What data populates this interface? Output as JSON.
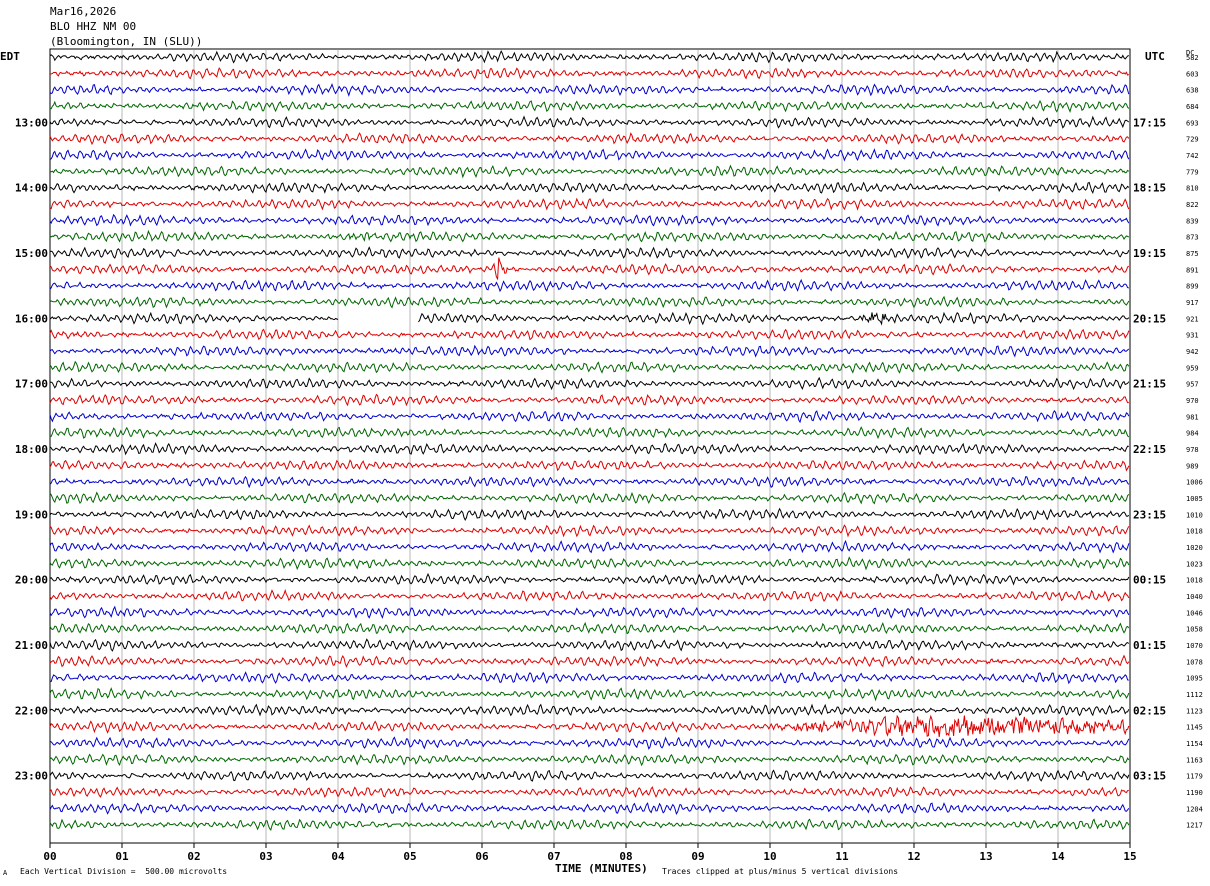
{
  "header": {
    "date": "Mar16,2026",
    "station": "BLO HHZ NM 00",
    "location": "(Bloomington, IN (SLU))"
  },
  "left_axis_title": "EDT",
  "right_axis_title": "UTC",
  "dc_header": "DC",
  "footer": {
    "scale_note": "Each Vertical Division =  500.00 microvolts",
    "clip_note": "Traces clipped at plus/minus 5 vertical divisions",
    "corner_mark": "A"
  },
  "colors": {
    "cycle": [
      "#000000",
      "#dd0000",
      "#0000cc",
      "#006600"
    ],
    "grid": "#888888"
  },
  "chart_data": {
    "type": "line",
    "xlabel": "TIME (MINUTES)",
    "xlim": [
      0,
      15
    ],
    "x_ticks": [
      "00",
      "01",
      "02",
      "03",
      "04",
      "05",
      "06",
      "07",
      "08",
      "09",
      "10",
      "11",
      "12",
      "13",
      "14",
      "15"
    ],
    "trace_count": 48,
    "left_hour_labels": [
      {
        "trace": 4,
        "label": "13:00"
      },
      {
        "trace": 8,
        "label": "14:00"
      },
      {
        "trace": 12,
        "label": "15:00"
      },
      {
        "trace": 16,
        "label": "16:00"
      },
      {
        "trace": 20,
        "label": "17:00"
      },
      {
        "trace": 24,
        "label": "18:00"
      },
      {
        "trace": 28,
        "label": "19:00"
      },
      {
        "trace": 32,
        "label": "20:00"
      },
      {
        "trace": 36,
        "label": "21:00"
      },
      {
        "trace": 40,
        "label": "22:00"
      },
      {
        "trace": 44,
        "label": "23:00"
      }
    ],
    "right_hour_labels": [
      {
        "trace": 4,
        "label": "17:15"
      },
      {
        "trace": 8,
        "label": "18:15"
      },
      {
        "trace": 12,
        "label": "19:15"
      },
      {
        "trace": 16,
        "label": "20:15"
      },
      {
        "trace": 20,
        "label": "21:15"
      },
      {
        "trace": 24,
        "label": "22:15"
      },
      {
        "trace": 28,
        "label": "23:15"
      },
      {
        "trace": 32,
        "label": "00:15"
      },
      {
        "trace": 36,
        "label": "01:15"
      },
      {
        "trace": 40,
        "label": "02:15"
      },
      {
        "trace": 44,
        "label": "03:15"
      }
    ],
    "dc_values": [
      "582",
      "603",
      "638",
      "684",
      "693",
      "729",
      "742",
      "779",
      "810",
      "822",
      "839",
      "873",
      "875",
      "891",
      "899",
      "917",
      "921",
      "931",
      "942",
      "959",
      "957",
      "970",
      "981",
      "984",
      "978",
      "989",
      "1006",
      "1005",
      "1010",
      "1018",
      "1020",
      "1023",
      "1018",
      "1040",
      "1046",
      "1058",
      "1070",
      "1078",
      "1095",
      "1112",
      "1123",
      "1145",
      "1154",
      "1163",
      "1179",
      "1190",
      "1204",
      "1217"
    ],
    "events": [
      {
        "trace": 11,
        "minute": 4.35,
        "note": "burst"
      },
      {
        "trace": 13,
        "minute": 6.25,
        "note": "spike"
      },
      {
        "trace": 16,
        "minute": 11.5,
        "note": "burst"
      },
      {
        "trace": 41,
        "minute": 12.8,
        "note": "high-amplitude noise"
      }
    ],
    "gaps": [
      {
        "trace": 16,
        "from_minute": 4.0,
        "to_minute": 5.1
      }
    ]
  }
}
